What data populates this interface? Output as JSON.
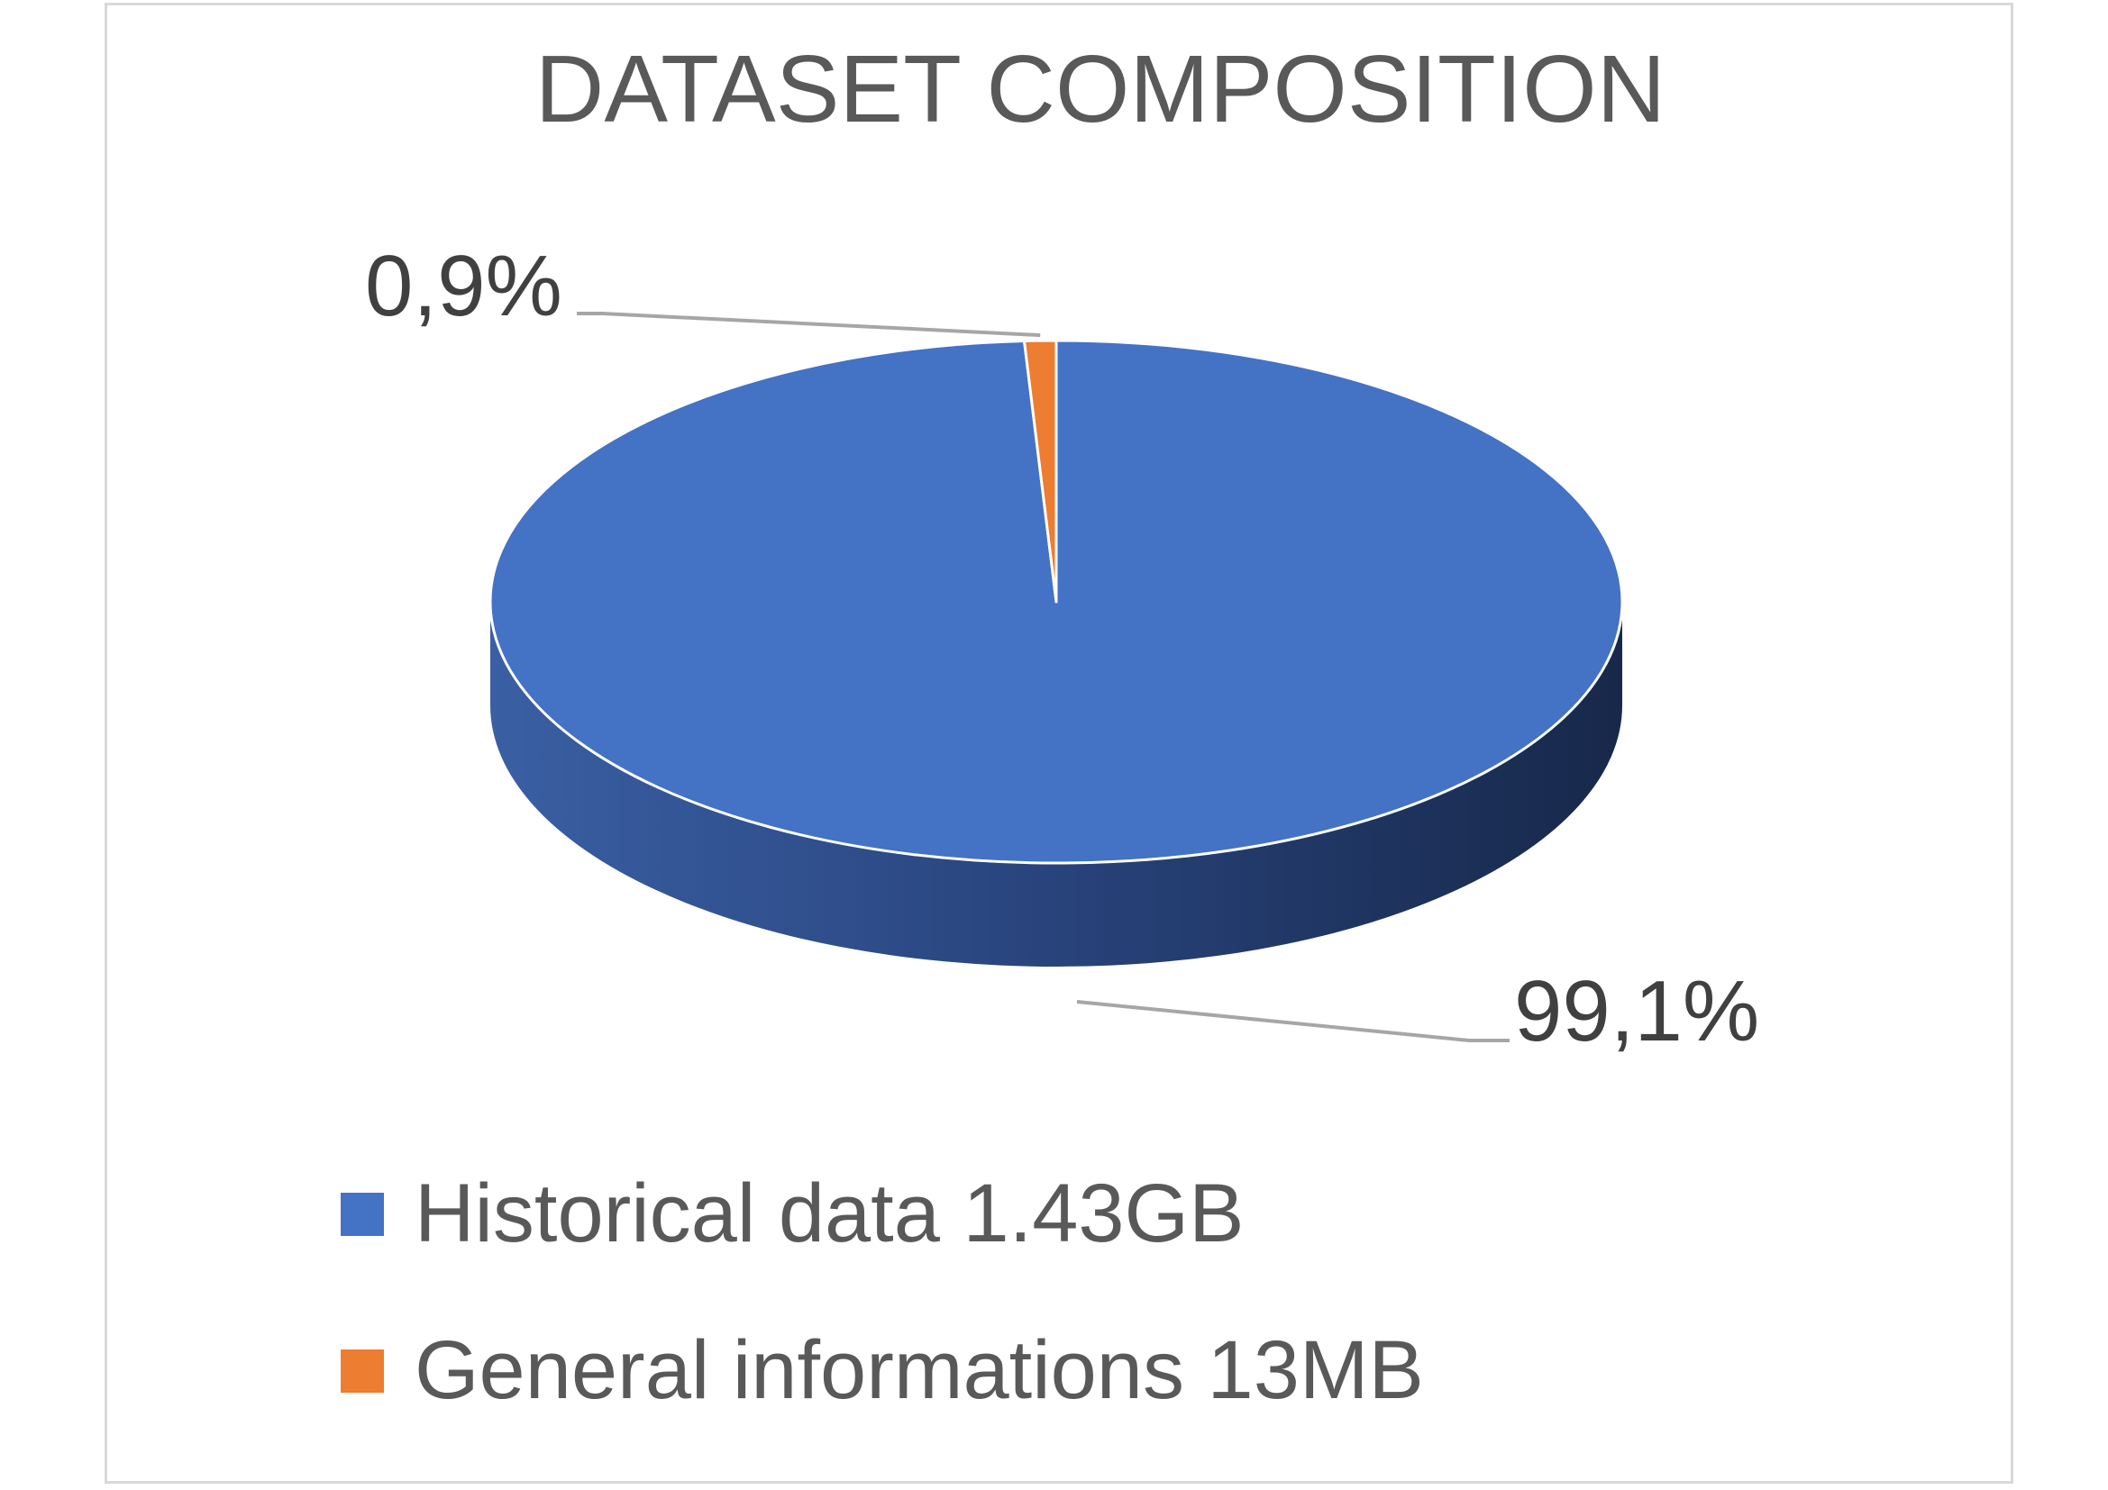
{
  "chart_data": {
    "type": "pie",
    "style": "3d",
    "title": "DATASET COMPOSITION",
    "slices": [
      {
        "name": "Historical data 1.43GB",
        "value": 99.1,
        "label": "99,1%",
        "color": "#4472c4"
      },
      {
        "name": "General informations 13MB",
        "value": 0.9,
        "label": "0,9%",
        "color": "#ed7d31"
      }
    ],
    "legend": {
      "placement": "bottom-left"
    },
    "data_labels": "outside with leader lines"
  }
}
